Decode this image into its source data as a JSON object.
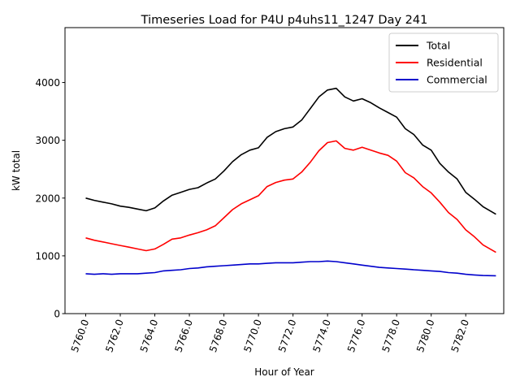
{
  "chart_data": {
    "type": "line",
    "title": "Timeseries Load for P4U p4uhs11_1247  Day 241",
    "xlabel": "Hour of Year",
    "ylabel": "kW total",
    "xlim": [
      5758.8,
      5784.2
    ],
    "ylim": [
      0,
      4950
    ],
    "xticks": [
      5760,
      5762,
      5764,
      5766,
      5768,
      5770,
      5772,
      5774,
      5776,
      5778,
      5780,
      5782
    ],
    "xtick_labels": [
      "5760.0",
      "5762.0",
      "5764.0",
      "5766.0",
      "5768.0",
      "5770.0",
      "5772.0",
      "5774.0",
      "5776.0",
      "5778.0",
      "5780.0",
      "5782.0"
    ],
    "yticks": [
      0,
      1000,
      2000,
      3000,
      4000
    ],
    "ytick_labels": [
      "0",
      "1000",
      "2000",
      "3000",
      "4000"
    ],
    "legend": {
      "position": "top-right"
    },
    "x": [
      5760.0,
      5760.5,
      5761.0,
      5761.5,
      5762.0,
      5762.5,
      5763.0,
      5763.5,
      5764.0,
      5764.5,
      5765.0,
      5765.5,
      5766.0,
      5766.5,
      5767.0,
      5767.5,
      5768.0,
      5768.5,
      5769.0,
      5769.5,
      5770.0,
      5770.5,
      5771.0,
      5771.5,
      5772.0,
      5772.5,
      5773.0,
      5773.5,
      5774.0,
      5774.5,
      5775.0,
      5775.5,
      5776.0,
      5776.5,
      5777.0,
      5777.5,
      5778.0,
      5778.5,
      5779.0,
      5779.5,
      5780.0,
      5780.5,
      5781.0,
      5781.5,
      5782.0,
      5782.5,
      5783.0,
      5783.75
    ],
    "series": [
      {
        "name": "Total",
        "color": "#000000",
        "values": [
          2000,
          1960,
          1930,
          1900,
          1860,
          1840,
          1810,
          1780,
          1830,
          1950,
          2050,
          2100,
          2150,
          2180,
          2260,
          2330,
          2470,
          2630,
          2750,
          2830,
          2870,
          3050,
          3150,
          3200,
          3230,
          3350,
          3550,
          3750,
          3870,
          3900,
          3750,
          3680,
          3720,
          3650,
          3560,
          3480,
          3400,
          3200,
          3100,
          2920,
          2830,
          2600,
          2450,
          2330,
          2100,
          1980,
          1850,
          1720
        ]
      },
      {
        "name": "Residential",
        "color": "#ff0000",
        "values": [
          1310,
          1270,
          1240,
          1210,
          1180,
          1150,
          1120,
          1090,
          1120,
          1200,
          1290,
          1310,
          1360,
          1400,
          1450,
          1520,
          1660,
          1800,
          1900,
          1970,
          2040,
          2200,
          2270,
          2310,
          2330,
          2450,
          2620,
          2820,
          2960,
          2990,
          2860,
          2830,
          2880,
          2830,
          2780,
          2740,
          2640,
          2440,
          2350,
          2200,
          2090,
          1930,
          1750,
          1630,
          1450,
          1330,
          1190,
          1060
        ]
      },
      {
        "name": "Commercial",
        "color": "#0000cc",
        "values": [
          690,
          680,
          690,
          680,
          690,
          690,
          690,
          700,
          710,
          740,
          750,
          760,
          780,
          790,
          810,
          820,
          830,
          840,
          850,
          860,
          860,
          870,
          880,
          880,
          880,
          890,
          900,
          900,
          910,
          900,
          880,
          860,
          840,
          820,
          800,
          790,
          780,
          770,
          760,
          750,
          740,
          730,
          710,
          700,
          680,
          670,
          660,
          655
        ]
      }
    ]
  }
}
